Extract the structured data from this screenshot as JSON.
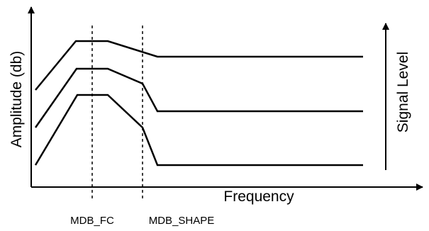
{
  "diagram": {
    "y_axis_label": "Amplitude (db)",
    "x_axis_label": "Frequency",
    "signal_level_label": "Signal Level",
    "markers": [
      {
        "label": "MDB_FC"
      },
      {
        "label": "MDB_SHAPE"
      }
    ],
    "curves": [
      {
        "level": "high"
      },
      {
        "level": "mid"
      },
      {
        "level": "low"
      }
    ],
    "colors": {
      "line": "#000000",
      "background": "#ffffff"
    }
  }
}
